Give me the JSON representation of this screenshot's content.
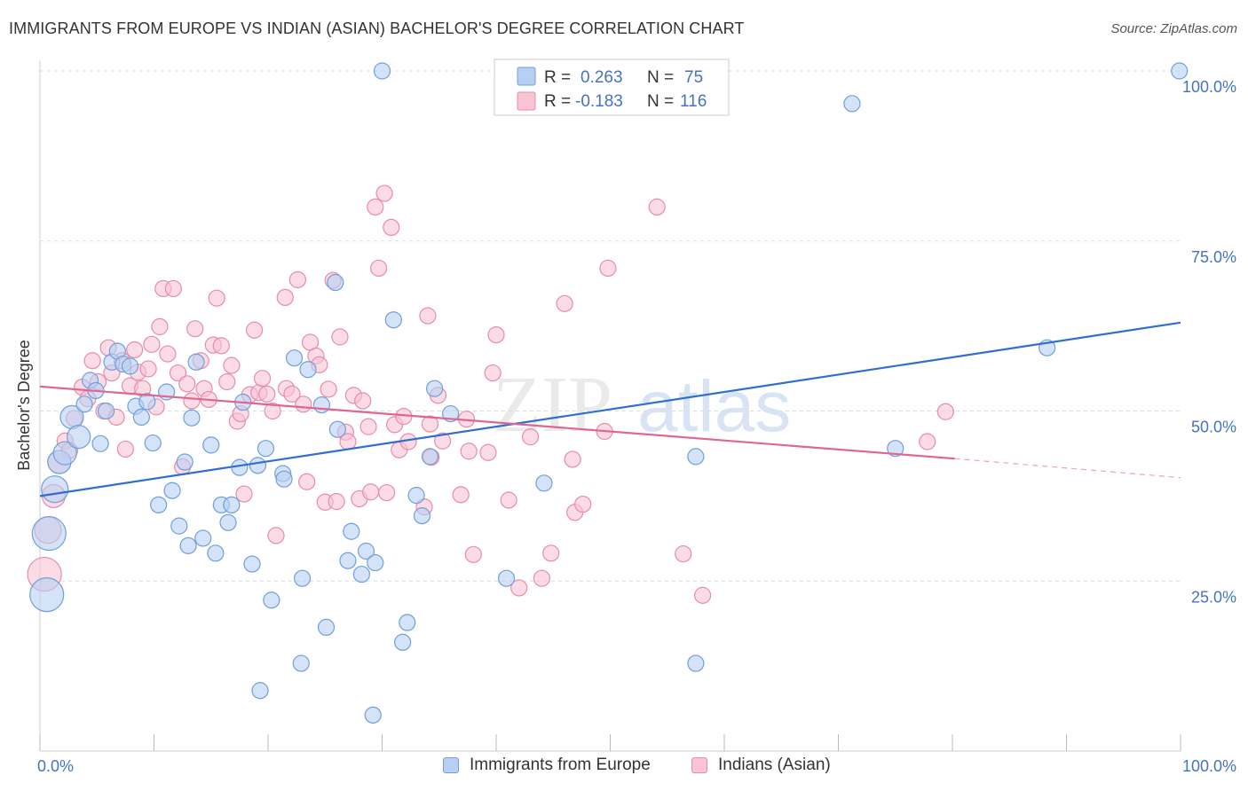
{
  "title": "IMMIGRANTS FROM EUROPE VS INDIAN (ASIAN) BACHELOR'S DEGREE CORRELATION CHART",
  "source": "Source: ZipAtlas.com",
  "watermark": {
    "zip": "ZIP",
    "atlas": "atlas"
  },
  "colors": {
    "blue_fill": "#b7d0f2",
    "blue_stroke": "#6f9fdc",
    "blue_line": "#2e6fd1",
    "pink_fill": "#f8c3d3",
    "pink_stroke": "#e88ca9",
    "pink_line": "#e06690",
    "tick_text": "#4472c4",
    "grid": "#dddddd"
  },
  "legend": {
    "items": [
      {
        "r_label": "R =",
        "r_value": "0.263",
        "n_label": "N =",
        "n_value": "75"
      },
      {
        "r_label": "R =",
        "r_value": "-0.183",
        "n_label": "N =",
        "n_value": "116"
      }
    ]
  },
  "chart_data": {
    "type": "scatter",
    "title": "IMMIGRANTS FROM EUROPE VS INDIAN (ASIAN) BACHELOR'S DEGREE CORRELATION CHART",
    "xlabel": "",
    "ylabel": "Bachelor's Degree",
    "xlim": [
      0,
      100
    ],
    "ylim": [
      0,
      100
    ],
    "x_tick_labels": [
      "0.0%",
      "100.0%"
    ],
    "y_tick_labels": [
      "25.0%",
      "50.0%",
      "75.0%",
      "100.0%"
    ],
    "y_ticks": [
      25,
      50,
      75,
      100
    ],
    "grid": true,
    "legend_position": "top-center",
    "series": [
      {
        "name": "Immigrants from Europe",
        "color": "#6f9fdc",
        "trend": {
          "x": [
            0,
            100
          ],
          "y": [
            37.5,
            63.0
          ]
        },
        "points": [
          {
            "x": 0.6,
            "y": 23,
            "s": 3
          },
          {
            "x": 0.8,
            "y": 32,
            "s": 3
          },
          {
            "x": 1.3,
            "y": 38.5,
            "s": 2
          },
          {
            "x": 1.7,
            "y": 42.5,
            "s": 1
          },
          {
            "x": 2.2,
            "y": 43.8,
            "s": 1
          },
          {
            "x": 2.8,
            "y": 49.1,
            "s": 1
          },
          {
            "x": 3.4,
            "y": 46.2,
            "s": 1
          },
          {
            "x": 3.9,
            "y": 51
          },
          {
            "x": 4.4,
            "y": 54.5
          },
          {
            "x": 4.9,
            "y": 53
          },
          {
            "x": 5.3,
            "y": 45.2
          },
          {
            "x": 5.8,
            "y": 50
          },
          {
            "x": 6.3,
            "y": 57.2
          },
          {
            "x": 6.8,
            "y": 58.8
          },
          {
            "x": 7.3,
            "y": 56.9
          },
          {
            "x": 7.9,
            "y": 56.6
          },
          {
            "x": 8.4,
            "y": 50.7
          },
          {
            "x": 8.9,
            "y": 49.1
          },
          {
            "x": 9.4,
            "y": 51.4
          },
          {
            "x": 9.9,
            "y": 45.3
          },
          {
            "x": 10.4,
            "y": 36.2
          },
          {
            "x": 11.1,
            "y": 52.8
          },
          {
            "x": 11.6,
            "y": 38.3
          },
          {
            "x": 12.2,
            "y": 33.1
          },
          {
            "x": 12.7,
            "y": 42.5
          },
          {
            "x": 13.0,
            "y": 30.2
          },
          {
            "x": 13.3,
            "y": 49
          },
          {
            "x": 13.7,
            "y": 57.2
          },
          {
            "x": 14.3,
            "y": 31.3
          },
          {
            "x": 15.0,
            "y": 45
          },
          {
            "x": 15.4,
            "y": 29.1
          },
          {
            "x": 15.9,
            "y": 36.2
          },
          {
            "x": 16.5,
            "y": 33.6
          },
          {
            "x": 16.8,
            "y": 36.2
          },
          {
            "x": 17.5,
            "y": 41.7
          },
          {
            "x": 17.8,
            "y": 51.3
          },
          {
            "x": 18.6,
            "y": 27.5
          },
          {
            "x": 19.1,
            "y": 42
          },
          {
            "x": 19.3,
            "y": 8.9
          },
          {
            "x": 19.8,
            "y": 44.5
          },
          {
            "x": 20.3,
            "y": 22.2
          },
          {
            "x": 21.3,
            "y": 40.8
          },
          {
            "x": 21.4,
            "y": 40
          },
          {
            "x": 22.3,
            "y": 57.8
          },
          {
            "x": 22.9,
            "y": 12.9
          },
          {
            "x": 23.0,
            "y": 25.4
          },
          {
            "x": 23.5,
            "y": 56.1
          },
          {
            "x": 24.7,
            "y": 50.9
          },
          {
            "x": 25.1,
            "y": 18.2
          },
          {
            "x": 25.9,
            "y": 68.9
          },
          {
            "x": 26.1,
            "y": 47.3
          },
          {
            "x": 27.0,
            "y": 28
          },
          {
            "x": 27.3,
            "y": 32.3
          },
          {
            "x": 28.2,
            "y": 26
          },
          {
            "x": 28.6,
            "y": 29.4
          },
          {
            "x": 29.2,
            "y": 5.3
          },
          {
            "x": 29.4,
            "y": 27.7
          },
          {
            "x": 30.0,
            "y": 100
          },
          {
            "x": 31.0,
            "y": 63.4
          },
          {
            "x": 31.8,
            "y": 16
          },
          {
            "x": 32.2,
            "y": 18.9
          },
          {
            "x": 33.0,
            "y": 37.6
          },
          {
            "x": 33.5,
            "y": 34.6
          },
          {
            "x": 34.2,
            "y": 43.3
          },
          {
            "x": 34.6,
            "y": 53.3
          },
          {
            "x": 36.0,
            "y": 49.6
          },
          {
            "x": 40.9,
            "y": 25.4
          },
          {
            "x": 44.2,
            "y": 39.4
          },
          {
            "x": 57.5,
            "y": 12.9
          },
          {
            "x": 57.5,
            "y": 43.3
          },
          {
            "x": 71.2,
            "y": 95.2
          },
          {
            "x": 75.0,
            "y": 44.5
          },
          {
            "x": 88.3,
            "y": 59.3
          },
          {
            "x": 99.9,
            "y": 100
          }
        ]
      },
      {
        "name": "Indians (Asian)",
        "color": "#e88ca9",
        "trend": {
          "x": [
            0,
            80.2
          ],
          "y": [
            53.6,
            43.0
          ]
        },
        "trend_dashed": {
          "x": [
            80.2,
            100
          ],
          "y": [
            43.0,
            40.2
          ]
        },
        "points": [
          {
            "x": 0.4,
            "y": 26,
            "s": 3
          },
          {
            "x": 0.7,
            "y": 32.5,
            "s": 2
          },
          {
            "x": 1.2,
            "y": 37.5,
            "s": 1
          },
          {
            "x": 1.7,
            "y": 42.5,
            "s": 1
          },
          {
            "x": 2.2,
            "y": 45.6
          },
          {
            "x": 2.6,
            "y": 44.2
          },
          {
            "x": 3.0,
            "y": 48.9
          },
          {
            "x": 3.7,
            "y": 53.5
          },
          {
            "x": 4.2,
            "y": 51.8
          },
          {
            "x": 4.6,
            "y": 57.4
          },
          {
            "x": 5.1,
            "y": 54.3
          },
          {
            "x": 5.6,
            "y": 50
          },
          {
            "x": 6.0,
            "y": 59.3
          },
          {
            "x": 6.3,
            "y": 55.6
          },
          {
            "x": 6.7,
            "y": 49.1
          },
          {
            "x": 7.2,
            "y": 57.4
          },
          {
            "x": 7.5,
            "y": 44.4
          },
          {
            "x": 7.9,
            "y": 53.7
          },
          {
            "x": 8.3,
            "y": 59
          },
          {
            "x": 8.6,
            "y": 55.7
          },
          {
            "x": 9.0,
            "y": 53.3
          },
          {
            "x": 9.5,
            "y": 56.2
          },
          {
            "x": 9.8,
            "y": 59.8
          },
          {
            "x": 10.2,
            "y": 50.6
          },
          {
            "x": 10.5,
            "y": 62.4
          },
          {
            "x": 10.8,
            "y": 68
          },
          {
            "x": 11.2,
            "y": 58.4
          },
          {
            "x": 11.7,
            "y": 68
          },
          {
            "x": 12.1,
            "y": 55.6
          },
          {
            "x": 12.5,
            "y": 41.8
          },
          {
            "x": 12.9,
            "y": 54
          },
          {
            "x": 13.3,
            "y": 51.5
          },
          {
            "x": 13.6,
            "y": 62.1
          },
          {
            "x": 14.1,
            "y": 57.4
          },
          {
            "x": 14.4,
            "y": 53.3
          },
          {
            "x": 14.8,
            "y": 51.7
          },
          {
            "x": 15.2,
            "y": 59.7
          },
          {
            "x": 15.5,
            "y": 66.6
          },
          {
            "x": 15.9,
            "y": 59.6
          },
          {
            "x": 16.4,
            "y": 54.3
          },
          {
            "x": 16.8,
            "y": 56.7
          },
          {
            "x": 17.3,
            "y": 48.5
          },
          {
            "x": 17.6,
            "y": 49.6
          },
          {
            "x": 17.9,
            "y": 37.8
          },
          {
            "x": 18.4,
            "y": 52.4
          },
          {
            "x": 18.8,
            "y": 61.9
          },
          {
            "x": 19.2,
            "y": 52.7
          },
          {
            "x": 19.5,
            "y": 54.8
          },
          {
            "x": 19.9,
            "y": 52.5
          },
          {
            "x": 20.4,
            "y": 50
          },
          {
            "x": 20.7,
            "y": 31.7
          },
          {
            "x": 21.6,
            "y": 53.3
          },
          {
            "x": 21.5,
            "y": 66.7
          },
          {
            "x": 22.1,
            "y": 52.5
          },
          {
            "x": 22.6,
            "y": 69.3
          },
          {
            "x": 23.1,
            "y": 51
          },
          {
            "x": 23.4,
            "y": 39.6
          },
          {
            "x": 23.7,
            "y": 60.1
          },
          {
            "x": 24.2,
            "y": 58.1
          },
          {
            "x": 24.5,
            "y": 56.8
          },
          {
            "x": 25.0,
            "y": 36.6
          },
          {
            "x": 25.3,
            "y": 53.2
          },
          {
            "x": 25.7,
            "y": 69.2
          },
          {
            "x": 26.0,
            "y": 36.7
          },
          {
            "x": 26.3,
            "y": 60.9
          },
          {
            "x": 26.8,
            "y": 46.9
          },
          {
            "x": 27.0,
            "y": 45.5
          },
          {
            "x": 27.5,
            "y": 52.3
          },
          {
            "x": 28.0,
            "y": 37.1
          },
          {
            "x": 28.3,
            "y": 51.5
          },
          {
            "x": 28.8,
            "y": 47.7
          },
          {
            "x": 29.0,
            "y": 38.1
          },
          {
            "x": 29.4,
            "y": 80
          },
          {
            "x": 29.7,
            "y": 71
          },
          {
            "x": 30.2,
            "y": 82
          },
          {
            "x": 30.4,
            "y": 38
          },
          {
            "x": 30.8,
            "y": 77
          },
          {
            "x": 31.1,
            "y": 48
          },
          {
            "x": 31.5,
            "y": 44.3
          },
          {
            "x": 31.9,
            "y": 49.2
          },
          {
            "x": 32.3,
            "y": 45.5
          },
          {
            "x": 33.7,
            "y": 35.9
          },
          {
            "x": 34.0,
            "y": 64
          },
          {
            "x": 34.2,
            "y": 48.1
          },
          {
            "x": 34.3,
            "y": 43.2
          },
          {
            "x": 34.9,
            "y": 52.3
          },
          {
            "x": 35.3,
            "y": 45.6
          },
          {
            "x": 36.9,
            "y": 37.7
          },
          {
            "x": 37.4,
            "y": 48.8
          },
          {
            "x": 37.6,
            "y": 44.1
          },
          {
            "x": 38.0,
            "y": 28.9
          },
          {
            "x": 39.3,
            "y": 43.9
          },
          {
            "x": 39.7,
            "y": 55.6
          },
          {
            "x": 40.0,
            "y": 61.2
          },
          {
            "x": 41.1,
            "y": 36.9
          },
          {
            "x": 42.0,
            "y": 24
          },
          {
            "x": 43.0,
            "y": 46.2
          },
          {
            "x": 44.0,
            "y": 25.4
          },
          {
            "x": 44.8,
            "y": 29.1
          },
          {
            "x": 46.0,
            "y": 65.8
          },
          {
            "x": 46.7,
            "y": 42.9
          },
          {
            "x": 46.9,
            "y": 35.1
          },
          {
            "x": 47.6,
            "y": 36.3
          },
          {
            "x": 49.8,
            "y": 71
          },
          {
            "x": 49.5,
            "y": 47
          },
          {
            "x": 54.1,
            "y": 80
          },
          {
            "x": 56.4,
            "y": 29
          },
          {
            "x": 58.1,
            "y": 22.9
          },
          {
            "x": 77.8,
            "y": 45.5
          },
          {
            "x": 79.4,
            "y": 49.9
          }
        ]
      }
    ]
  }
}
